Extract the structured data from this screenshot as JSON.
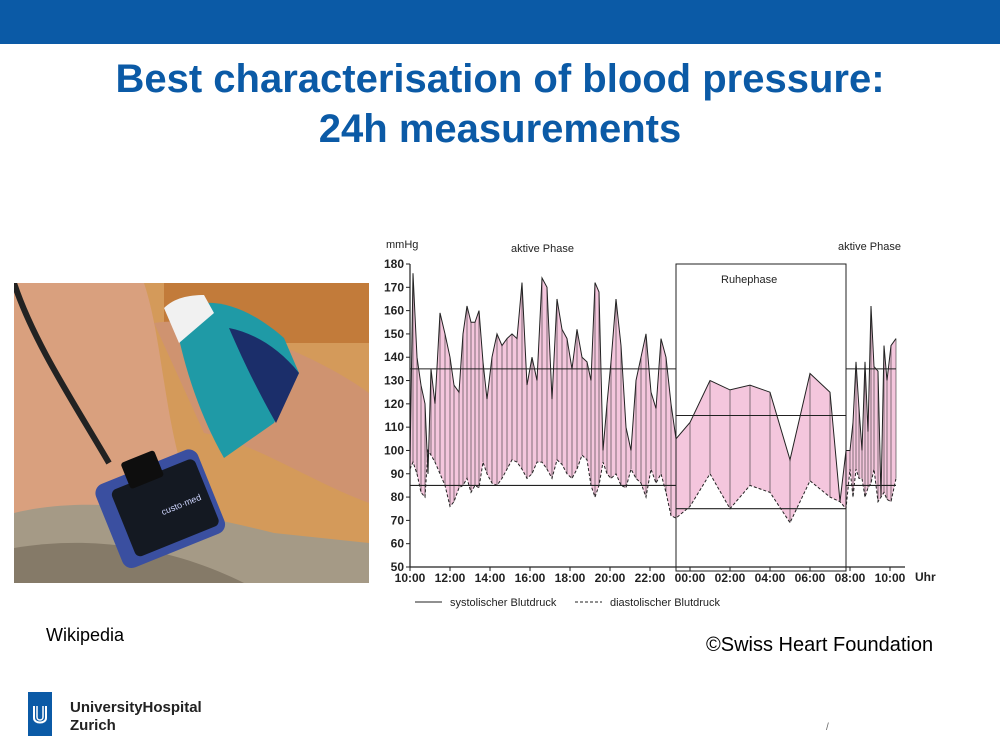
{
  "slide": {
    "title_line1": "Best characterisation of blood pressure:",
    "title_line2": "24h measurements",
    "caption_left": "Wikipedia",
    "caption_right": "©Swiss Heart Foundation",
    "org_line1": "UniversityHospital",
    "org_line2": "Zurich",
    "page_mark": "/"
  },
  "colors": {
    "brand": "#0b5aa6",
    "fill": "#f4c6dd"
  },
  "chart_data": {
    "type": "area",
    "ylabel": "mmHg",
    "ylim": [
      50,
      180
    ],
    "yticks": [
      50,
      60,
      70,
      80,
      90,
      100,
      110,
      120,
      130,
      140,
      150,
      160,
      170,
      180
    ],
    "xunit": "Uhr",
    "xticks": [
      {
        "h": 0,
        "label": "10:00"
      },
      {
        "h": 2,
        "label": "12:00"
      },
      {
        "h": 4,
        "label": "14:00"
      },
      {
        "h": 6,
        "label": "16:00"
      },
      {
        "h": 8,
        "label": "18:00"
      },
      {
        "h": 10,
        "label": "20:00"
      },
      {
        "h": 12,
        "label": "22:00"
      },
      {
        "h": 14,
        "label": "00:00"
      },
      {
        "h": 16,
        "label": "02:00"
      },
      {
        "h": 18,
        "label": "04:00"
      },
      {
        "h": 20,
        "label": "06:00"
      },
      {
        "h": 22,
        "label": "08:00"
      },
      {
        "h": 24,
        "label": "10:00"
      }
    ],
    "annotations": {
      "active_left": "aktive Phase",
      "rest": "Ruhephase",
      "active_right": "aktive Phase"
    },
    "rest_period": [
      13.3,
      21.8
    ],
    "threshold_lines": [
      {
        "from": 0,
        "to": 13.3,
        "value": 135
      },
      {
        "from": 0,
        "to": 13.3,
        "value": 85
      },
      {
        "from": 13.3,
        "to": 21.8,
        "value": 115
      },
      {
        "from": 13.3,
        "to": 21.8,
        "value": 75
      },
      {
        "from": 21.8,
        "to": 24.3,
        "value": 135
      },
      {
        "from": 21.8,
        "to": 24.3,
        "value": 85
      }
    ],
    "legend": {
      "systolic": "systolischer Blutdruck",
      "diastolic": "diastolischer Blutdruck"
    },
    "series": [
      {
        "name": "systolischer Blutdruck",
        "points": [
          [
            0.0,
            95
          ],
          [
            0.15,
            176
          ],
          [
            0.35,
            140
          ],
          [
            0.55,
            128
          ],
          [
            0.75,
            120
          ],
          [
            0.9,
            90
          ],
          [
            1.05,
            135
          ],
          [
            1.25,
            120
          ],
          [
            1.5,
            159
          ],
          [
            1.75,
            150
          ],
          [
            2.0,
            140
          ],
          [
            2.2,
            128
          ],
          [
            2.45,
            125
          ],
          [
            2.65,
            150
          ],
          [
            2.85,
            162
          ],
          [
            3.05,
            155
          ],
          [
            3.25,
            155
          ],
          [
            3.45,
            160
          ],
          [
            3.65,
            138
          ],
          [
            3.85,
            122
          ],
          [
            4.1,
            140
          ],
          [
            4.35,
            150
          ],
          [
            4.6,
            145
          ],
          [
            4.85,
            148
          ],
          [
            5.1,
            150
          ],
          [
            5.35,
            148
          ],
          [
            5.6,
            172
          ],
          [
            5.85,
            128
          ],
          [
            6.1,
            140
          ],
          [
            6.35,
            130
          ],
          [
            6.6,
            174
          ],
          [
            6.85,
            170
          ],
          [
            7.1,
            122
          ],
          [
            7.35,
            165
          ],
          [
            7.6,
            152
          ],
          [
            7.85,
            148
          ],
          [
            8.1,
            135
          ],
          [
            8.35,
            152
          ],
          [
            8.6,
            140
          ],
          [
            8.85,
            138
          ],
          [
            9.05,
            130
          ],
          [
            9.25,
            172
          ],
          [
            9.45,
            168
          ],
          [
            9.65,
            100
          ],
          [
            9.85,
            120
          ],
          [
            10.05,
            138
          ],
          [
            10.3,
            165
          ],
          [
            10.55,
            145
          ],
          [
            10.8,
            110
          ],
          [
            11.05,
            100
          ],
          [
            11.3,
            130
          ],
          [
            11.55,
            140
          ],
          [
            11.8,
            150
          ],
          [
            12.05,
            125
          ],
          [
            12.3,
            118
          ],
          [
            12.55,
            148
          ],
          [
            12.8,
            140
          ],
          [
            13.05,
            120
          ],
          [
            13.3,
            105
          ],
          [
            14.0,
            112
          ],
          [
            15.0,
            130
          ],
          [
            16.0,
            126
          ],
          [
            17.0,
            128
          ],
          [
            18.0,
            125
          ],
          [
            19.0,
            96
          ],
          [
            20.0,
            133
          ],
          [
            21.0,
            125
          ],
          [
            21.5,
            78
          ],
          [
            21.8,
            100
          ],
          [
            22.0,
            100
          ],
          [
            22.15,
            112
          ],
          [
            22.3,
            138
          ],
          [
            22.45,
            118
          ],
          [
            22.6,
            100
          ],
          [
            22.75,
            138
          ],
          [
            22.9,
            108
          ],
          [
            23.05,
            162
          ],
          [
            23.2,
            136
          ],
          [
            23.4,
            134
          ],
          [
            23.55,
            80
          ],
          [
            23.7,
            145
          ],
          [
            23.85,
            130
          ],
          [
            24.05,
            145
          ],
          [
            24.3,
            148
          ]
        ]
      },
      {
        "name": "diastolischer Blutdruck",
        "points": [
          [
            0.0,
            92
          ],
          [
            0.15,
            95
          ],
          [
            0.35,
            90
          ],
          [
            0.55,
            82
          ],
          [
            0.75,
            80
          ],
          [
            0.9,
            100
          ],
          [
            1.05,
            98
          ],
          [
            1.25,
            95
          ],
          [
            1.5,
            90
          ],
          [
            1.75,
            85
          ],
          [
            2.0,
            76
          ],
          [
            2.2,
            78
          ],
          [
            2.45,
            84
          ],
          [
            2.65,
            85
          ],
          [
            2.85,
            88
          ],
          [
            3.05,
            82
          ],
          [
            3.25,
            85
          ],
          [
            3.45,
            84
          ],
          [
            3.65,
            95
          ],
          [
            3.85,
            90
          ],
          [
            4.1,
            86
          ],
          [
            4.35,
            85
          ],
          [
            4.6,
            88
          ],
          [
            4.85,
            92
          ],
          [
            5.1,
            96
          ],
          [
            5.35,
            95
          ],
          [
            5.6,
            92
          ],
          [
            5.85,
            88
          ],
          [
            6.1,
            90
          ],
          [
            6.35,
            95
          ],
          [
            6.6,
            95
          ],
          [
            6.85,
            92
          ],
          [
            7.1,
            88
          ],
          [
            7.35,
            96
          ],
          [
            7.6,
            94
          ],
          [
            7.85,
            90
          ],
          [
            8.1,
            88
          ],
          [
            8.35,
            92
          ],
          [
            8.6,
            98
          ],
          [
            8.85,
            96
          ],
          [
            9.05,
            85
          ],
          [
            9.25,
            80
          ],
          [
            9.45,
            85
          ],
          [
            9.65,
            95
          ],
          [
            9.85,
            90
          ],
          [
            10.05,
            88
          ],
          [
            10.3,
            90
          ],
          [
            10.55,
            85
          ],
          [
            10.8,
            84
          ],
          [
            11.05,
            92
          ],
          [
            11.3,
            88
          ],
          [
            11.55,
            86
          ],
          [
            11.8,
            80
          ],
          [
            12.05,
            92
          ],
          [
            12.3,
            86
          ],
          [
            12.55,
            90
          ],
          [
            12.8,
            82
          ],
          [
            13.05,
            72
          ],
          [
            13.3,
            71
          ],
          [
            14.0,
            76
          ],
          [
            15.0,
            90
          ],
          [
            16.0,
            75
          ],
          [
            17.0,
            85
          ],
          [
            18.0,
            82
          ],
          [
            19.0,
            69
          ],
          [
            20.0,
            87
          ],
          [
            21.0,
            80
          ],
          [
            21.5,
            78
          ],
          [
            21.8,
            75
          ],
          [
            22.0,
            92
          ],
          [
            22.15,
            80
          ],
          [
            22.3,
            92
          ],
          [
            22.45,
            88
          ],
          [
            22.6,
            88
          ],
          [
            22.75,
            80
          ],
          [
            22.9,
            84
          ],
          [
            23.05,
            86
          ],
          [
            23.2,
            92
          ],
          [
            23.4,
            78
          ],
          [
            23.55,
            80
          ],
          [
            23.7,
            82
          ],
          [
            23.85,
            79
          ],
          [
            24.05,
            78
          ],
          [
            24.3,
            88
          ]
        ]
      }
    ]
  }
}
